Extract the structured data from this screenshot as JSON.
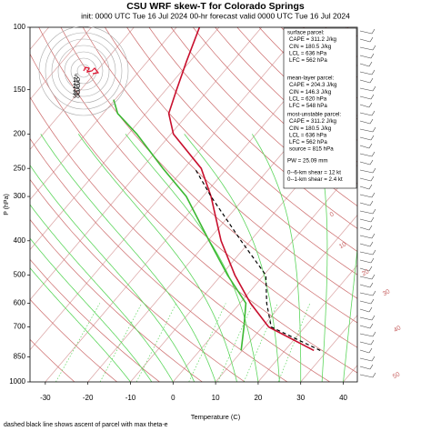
{
  "chart_data": {
    "type": "skew-t",
    "title": "CSU WRF skew-T for Colorado Springs",
    "subtitle": "init: 0000 UTC Tue 16 Jul 2024    00-hr forecast valid 0000 UTC Tue 16 Jul 2024",
    "xlabel": "Temperature (C)",
    "ylabel": "P (hPa)",
    "footnote": "dashed black line shows ascent of parcel with max theta-e",
    "xlim": [
      -33.6,
      43.3
    ],
    "xticks": [
      -30,
      -20,
      -10,
      0,
      10,
      20,
      30,
      40
    ],
    "ylim": [
      1000,
      100
    ],
    "yticks": [
      100,
      150,
      200,
      250,
      300,
      400,
      500,
      600,
      700,
      850,
      1000
    ],
    "log_y": true,
    "series": [
      {
        "color": "#c8102e",
        "style": "solid",
        "pressure": [
          815,
          700,
          600,
          500,
          400,
          300,
          250,
          200,
          175,
          150,
          125,
          100
        ],
        "values": [
          26.8,
          11.5,
          2.5,
          -6.8,
          -16.9,
          -28.1,
          -36,
          -49.4,
          -54.6,
          -57.5,
          -60.8,
          -64.6
        ]
      },
      {
        "color": "#3cb832",
        "style": "solid",
        "pressure": [
          815,
          700,
          600,
          500,
          400,
          300,
          250,
          200,
          175,
          160
        ],
        "values": [
          9.7,
          5.7,
          1.4,
          -8.5,
          -19.7,
          -33.9,
          -45,
          -58,
          -66.6,
          -70.3
        ]
      },
      {
        "color": "#000000",
        "style": "dashed",
        "pressure": [
          815,
          700,
          600,
          500,
          400,
          300,
          250
        ],
        "values": [
          28.3,
          12.1,
          6.3,
          0.5,
          -12.2,
          -28.1,
          -37.5
        ]
      }
    ],
    "hodograph_rings": [
      5,
      10,
      15,
      20,
      25,
      30,
      35
    ],
    "adiabat_labels": [
      0,
      10,
      20,
      30,
      40,
      50
    ],
    "info_blocks": [
      [
        "surface parcel:",
        "CAPE = 311.2 J/kg",
        "CIN = 180.5 J/kg",
        "LCL = 636 hPa",
        "LFC = 562 hPa"
      ],
      [
        "mean-layer parcel:",
        "CAPE = 204.3 J/kg",
        "CIN = 146.3 J/kg",
        "LCL = 620 hPa",
        "LFC = 548 hPa"
      ],
      [
        "most-unstable parcel:",
        "CAPE = 311.2 J/kg",
        "CIN = 180.5 J/kg",
        "LCL = 636 hPa",
        "LFC = 562 hPa",
        "source = 815 hPa"
      ],
      [
        "PW =  25.09 mm"
      ],
      [
        "0--6-km shear = 12 kt",
        "0--1-km shear = 2.4 kt"
      ]
    ]
  }
}
